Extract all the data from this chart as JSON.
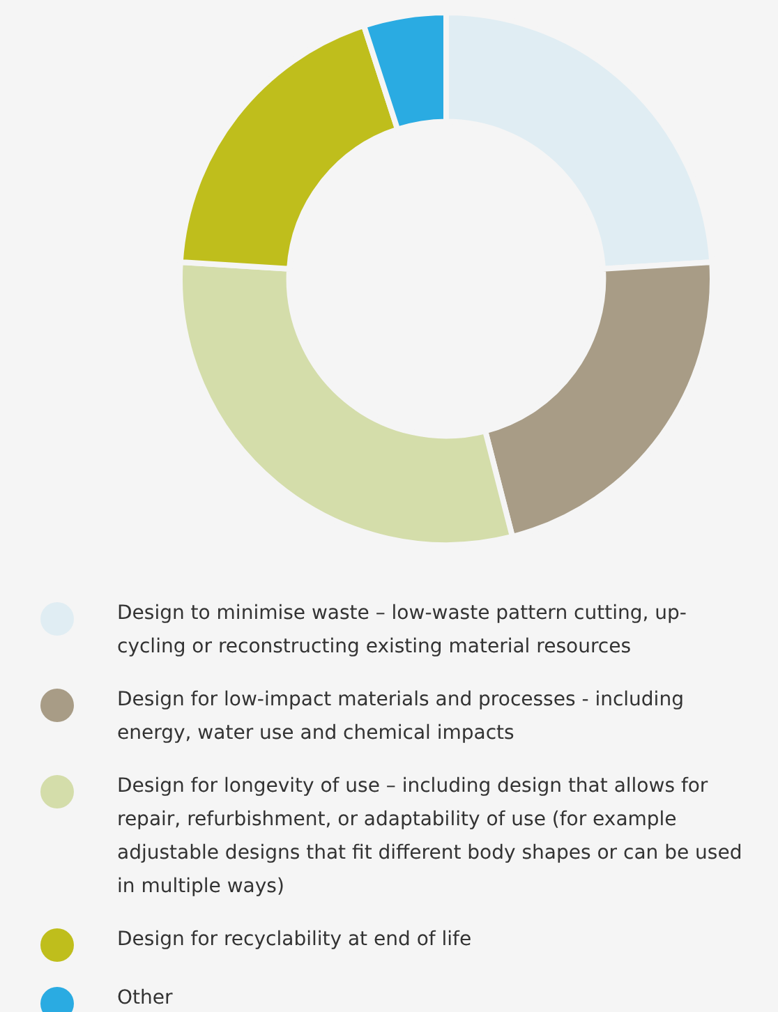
{
  "chart_data": {
    "type": "donut",
    "categories": [
      "Design to minimise waste – low-waste pattern cutting, up-cycling or reconstructing existing material resources",
      "Design for low-impact materials and processes - including energy, water use and chemical impacts",
      "Design for longevity of use – including design that allows for repair, refurbishment, or adaptability of use (for example adjustable designs that fit different body shapes or can be used in multiple ways)",
      "Design for recyclability at end of life",
      "Other"
    ],
    "values": [
      24,
      22,
      30,
      19,
      5
    ],
    "colors": [
      "#e0edf3",
      "#a89c86",
      "#d4ddaa",
      "#bfbe1c",
      "#2aabe2"
    ],
    "legend": "bottom"
  }
}
